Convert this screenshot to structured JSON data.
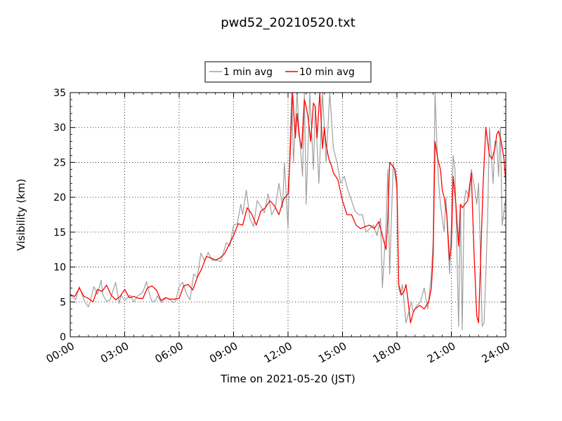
{
  "chart_data": {
    "type": "line",
    "title": "pwd52_20210520.txt",
    "xlabel": "Time on 2021-05-20 (JST)",
    "ylabel": "Visibility (km)",
    "xlim": [
      0,
      24
    ],
    "ylim": [
      0,
      35
    ],
    "x_ticks": [
      "00:00",
      "03:00",
      "06:00",
      "09:00",
      "12:00",
      "15:00",
      "18:00",
      "21:00",
      "24:00"
    ],
    "x_tick_values": [
      0,
      3,
      6,
      9,
      12,
      15,
      18,
      21,
      24
    ],
    "y_ticks": [
      0,
      5,
      10,
      15,
      20,
      25,
      30,
      35
    ],
    "grid": true,
    "legend_position": "top-center",
    "series": [
      {
        "name": "1 min avg",
        "color": "#a0a0a0",
        "x": [
          0.0,
          0.3,
          0.5,
          0.8,
          1.0,
          1.1,
          1.3,
          1.5,
          1.7,
          1.8,
          2.0,
          2.2,
          2.5,
          2.7,
          2.8,
          3.0,
          3.3,
          3.5,
          3.7,
          4.0,
          4.2,
          4.3,
          4.5,
          4.7,
          4.8,
          5.0,
          5.3,
          5.5,
          5.7,
          5.8,
          6.0,
          6.2,
          6.4,
          6.6,
          6.8,
          7.0,
          7.2,
          7.4,
          7.6,
          7.8,
          8.0,
          8.3,
          8.6,
          8.8,
          9.0,
          9.2,
          9.4,
          9.5,
          9.7,
          9.9,
          10.1,
          10.3,
          10.5,
          10.7,
          10.9,
          11.1,
          11.3,
          11.5,
          11.7,
          11.8,
          12.0,
          12.1,
          12.2,
          12.3,
          12.5,
          12.6,
          12.8,
          12.9,
          13.0,
          13.2,
          13.4,
          13.5,
          13.7,
          13.9,
          14.1,
          14.3,
          14.5,
          14.7,
          14.9,
          15.1,
          15.3,
          15.5,
          15.7,
          15.9,
          16.1,
          16.3,
          16.5,
          16.7,
          16.9,
          17.1,
          17.2,
          17.4,
          17.5,
          17.6,
          17.8,
          18.0,
          18.1,
          18.2,
          18.3,
          18.5,
          18.6,
          18.8,
          18.9,
          19.1,
          19.3,
          19.5,
          19.7,
          19.9,
          20.0,
          20.1,
          20.2,
          20.3,
          20.4,
          20.6,
          20.7,
          20.9,
          21.0,
          21.1,
          21.2,
          21.3,
          21.4,
          21.5,
          21.6,
          21.7,
          21.8,
          22.0,
          22.1,
          22.3,
          22.4,
          22.5,
          22.6,
          22.7,
          22.8,
          22.9,
          23.0,
          23.1,
          23.3,
          23.4,
          23.5,
          23.6,
          23.7,
          23.8,
          24.0
        ],
        "values": [
          6.0,
          5.3,
          7.2,
          5.0,
          4.3,
          5.0,
          7.2,
          6.1,
          8.1,
          6.0,
          5.1,
          5.3,
          7.8,
          4.8,
          6.0,
          5.2,
          6.0,
          5.0,
          5.8,
          6.4,
          7.9,
          6.8,
          5.0,
          5.2,
          5.9,
          4.9,
          5.6,
          5.3,
          4.9,
          5.1,
          7.2,
          7.8,
          6.2,
          5.3,
          9.0,
          8.5,
          12.0,
          10.9,
          12.1,
          11.0,
          11.0,
          10.8,
          13.5,
          13.0,
          16.0,
          16.2,
          19.0,
          17.5,
          21.0,
          17.0,
          15.8,
          19.5,
          18.7,
          17.8,
          20.5,
          17.5,
          18.5,
          22.0,
          18.5,
          25.0,
          15.5,
          27.0,
          35.0,
          25.0,
          35.0,
          30.0,
          23.0,
          35.0,
          19.0,
          35.0,
          24.0,
          33.0,
          22.0,
          35.0,
          25.0,
          35.0,
          27.0,
          25.0,
          22.0,
          23.0,
          21.0,
          19.5,
          18.0,
          17.5,
          17.5,
          15.0,
          15.5,
          16.0,
          14.5,
          17.0,
          7.0,
          16.0,
          24.0,
          9.0,
          25.0,
          21.0,
          7.0,
          6.0,
          7.5,
          2.0,
          3.0,
          5.0,
          3.5,
          4.5,
          5.0,
          7.0,
          4.0,
          9.0,
          14.0,
          35.0,
          28.0,
          22.0,
          19.0,
          15.0,
          20.0,
          9.0,
          16.0,
          26.0,
          24.0,
          13.0,
          1.5,
          19.0,
          1.0,
          19.0,
          21.0,
          20.0,
          24.0,
          21.0,
          19.0,
          22.0,
          12.0,
          1.5,
          2.0,
          9.0,
          17.0,
          30.0,
          22.0,
          28.0,
          28.0,
          23.0,
          30.0,
          16.0,
          20.0
        ]
      },
      {
        "name": "10 min avg",
        "color": "#ff0000",
        "x": [
          0.0,
          0.25,
          0.5,
          0.75,
          1.0,
          1.25,
          1.5,
          1.75,
          2.0,
          2.25,
          2.5,
          2.75,
          3.0,
          3.25,
          3.5,
          3.75,
          4.0,
          4.25,
          4.5,
          4.75,
          5.0,
          5.25,
          5.5,
          5.75,
          6.0,
          6.25,
          6.5,
          6.75,
          7.0,
          7.25,
          7.5,
          7.75,
          8.0,
          8.25,
          8.5,
          8.75,
          9.0,
          9.25,
          9.5,
          9.75,
          10.0,
          10.25,
          10.5,
          10.75,
          11.0,
          11.25,
          11.5,
          11.75,
          12.0,
          12.1,
          12.25,
          12.4,
          12.5,
          12.6,
          12.75,
          12.9,
          13.0,
          13.1,
          13.25,
          13.4,
          13.5,
          13.6,
          13.75,
          13.9,
          14.0,
          14.1,
          14.25,
          14.4,
          14.5,
          14.75,
          15.0,
          15.25,
          15.5,
          15.75,
          16.0,
          16.25,
          16.5,
          16.75,
          17.0,
          17.1,
          17.25,
          17.4,
          17.5,
          17.6,
          17.75,
          17.9,
          18.0,
          18.1,
          18.25,
          18.4,
          18.5,
          18.6,
          18.75,
          18.9,
          19.0,
          19.25,
          19.5,
          19.75,
          19.9,
          20.0,
          20.1,
          20.25,
          20.4,
          20.5,
          20.6,
          20.75,
          20.9,
          21.0,
          21.1,
          21.25,
          21.4,
          21.5,
          21.6,
          21.75,
          21.9,
          22.0,
          22.1,
          22.25,
          22.4,
          22.5,
          22.6,
          22.75,
          22.9,
          23.0,
          23.1,
          23.25,
          23.4,
          23.5,
          23.6,
          23.75,
          23.9,
          24.0
        ],
        "values": [
          6.0,
          5.8,
          7.0,
          5.8,
          5.5,
          5.0,
          6.8,
          6.5,
          7.4,
          6.0,
          5.3,
          5.8,
          6.8,
          5.6,
          5.8,
          5.5,
          5.5,
          7.0,
          7.3,
          6.7,
          5.2,
          5.6,
          5.4,
          5.4,
          5.5,
          7.3,
          7.5,
          6.7,
          8.5,
          9.8,
          11.5,
          11.3,
          11.0,
          11.3,
          11.9,
          13.2,
          14.5,
          16.2,
          16.0,
          18.5,
          17.6,
          16.0,
          18.0,
          18.5,
          19.5,
          18.8,
          17.5,
          19.7,
          20.5,
          25.0,
          35.0,
          28.5,
          32.0,
          29.0,
          27.0,
          34.0,
          33.0,
          31.5,
          28.0,
          33.5,
          33.0,
          28.5,
          35.0,
          27.0,
          30.0,
          27.5,
          25.5,
          24.5,
          23.5,
          22.5,
          19.5,
          17.5,
          17.5,
          16.0,
          15.5,
          15.8,
          16.0,
          15.5,
          16.5,
          15.5,
          14.0,
          12.5,
          17.0,
          25.0,
          24.5,
          24.0,
          22.0,
          7.5,
          6.0,
          6.5,
          7.5,
          5.5,
          2.0,
          3.5,
          4.0,
          4.5,
          4.0,
          5.0,
          7.0,
          12.0,
          28.0,
          25.5,
          24.0,
          21.0,
          20.0,
          17.5,
          11.0,
          13.0,
          23.0,
          19.0,
          13.0,
          19.0,
          18.5,
          19.0,
          19.5,
          21.5,
          23.5,
          12.0,
          3.0,
          2.0,
          10.0,
          22.0,
          30.0,
          28.0,
          26.0,
          25.5,
          27.0,
          29.0,
          29.5,
          28.0,
          25.5,
          22.0
        ]
      }
    ]
  }
}
